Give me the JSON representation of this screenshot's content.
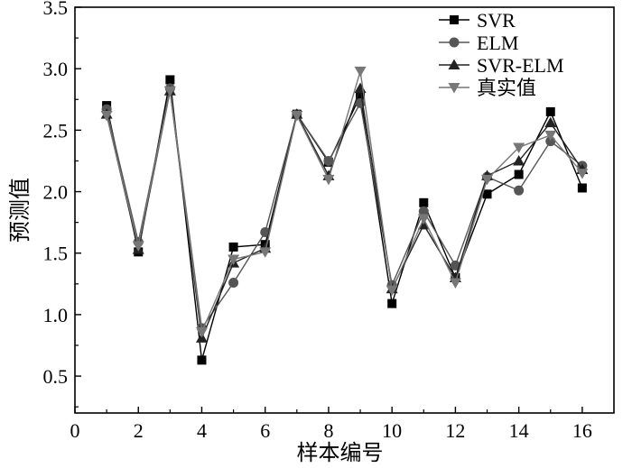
{
  "chart_data": {
    "type": "line",
    "xlabel": "样本编号",
    "ylabel": "预测值",
    "xlim": [
      0,
      17
    ],
    "ylim": [
      0.2,
      3.5
    ],
    "x_ticks": [
      0,
      2,
      4,
      6,
      8,
      10,
      12,
      14,
      16
    ],
    "y_ticks": [
      0.5,
      1.0,
      1.5,
      2.0,
      2.5,
      3.0,
      3.5
    ],
    "x_tick_labels": [
      "0",
      "2",
      "4",
      "6",
      "8",
      "10",
      "12",
      "14",
      "16"
    ],
    "y_tick_labels": [
      "0.5",
      "1.0",
      "1.5",
      "2.0",
      "2.5",
      "3.0",
      "3.5"
    ],
    "grid": false,
    "legend_position": "top-right",
    "x": [
      1,
      2,
      3,
      4,
      5,
      6,
      7,
      8,
      9,
      10,
      11,
      12,
      13,
      14,
      15,
      16
    ],
    "series": [
      {
        "name": "SVR",
        "marker": "square",
        "color": "#000000",
        "values": [
          2.7,
          1.51,
          2.91,
          0.63,
          1.55,
          1.57,
          2.63,
          2.24,
          2.78,
          1.09,
          1.91,
          1.3,
          1.98,
          2.14,
          2.65,
          2.03
        ]
      },
      {
        "name": "ELM",
        "marker": "circle",
        "color": "#555555",
        "values": [
          2.67,
          1.59,
          2.84,
          0.89,
          1.26,
          1.67,
          2.63,
          2.25,
          2.72,
          1.24,
          1.84,
          1.4,
          2.12,
          2.01,
          2.41,
          2.21
        ]
      },
      {
        "name": "SVR-ELM",
        "marker": "triangle-up",
        "color": "#222222",
        "values": [
          2.63,
          1.53,
          2.82,
          0.81,
          1.42,
          1.54,
          2.63,
          2.13,
          2.84,
          1.21,
          1.73,
          1.3,
          2.13,
          2.25,
          2.56,
          2.18
        ]
      },
      {
        "name": "真实值",
        "marker": "triangle-down",
        "color": "#777777",
        "values": [
          2.62,
          1.56,
          2.82,
          0.86,
          1.45,
          1.51,
          2.62,
          2.1,
          2.98,
          1.2,
          1.78,
          1.26,
          2.1,
          2.36,
          2.46,
          2.15
        ]
      }
    ]
  }
}
